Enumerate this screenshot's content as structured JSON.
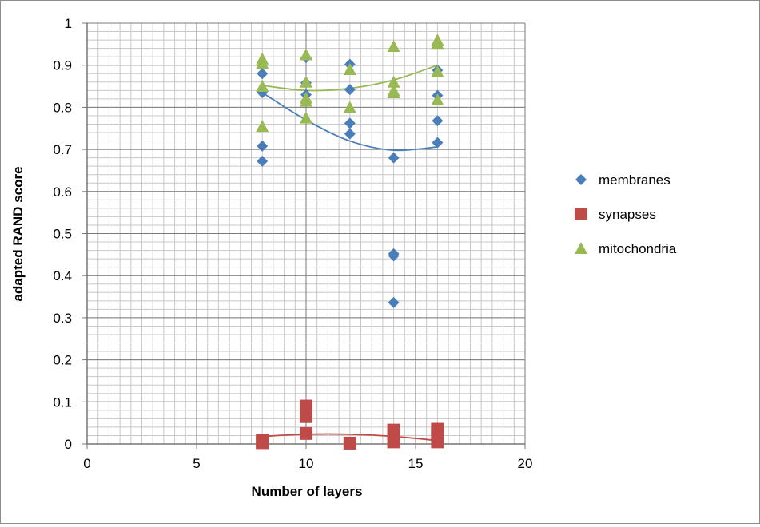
{
  "chart_data": {
    "type": "scatter",
    "title": "",
    "xlabel": "Number of layers",
    "ylabel": "adapted RAND score",
    "xlim": [
      0,
      20
    ],
    "ylim": [
      0,
      1
    ],
    "x_major_ticks": [
      0,
      5,
      10,
      15,
      20
    ],
    "y_major_ticks": [
      0,
      0.1,
      0.2,
      0.3,
      0.4,
      0.5,
      0.6,
      0.7,
      0.8,
      0.9,
      1
    ],
    "x_tick_labels": [
      "0",
      "5",
      "10",
      "15",
      "20"
    ],
    "y_tick_labels": [
      "0",
      "0.1",
      "0.2",
      "0.3",
      "0.4",
      "0.5",
      "0.6",
      "0.7",
      "0.8",
      "0.9",
      "1"
    ],
    "grid": true,
    "legend_position": "right",
    "series": [
      {
        "name": "membranes",
        "marker": "diamond",
        "color": "#4a7ebb",
        "points": [
          [
            8,
            0.835
          ],
          [
            8,
            0.88
          ],
          [
            8,
            0.708
          ],
          [
            8,
            0.672
          ],
          [
            10,
            0.918
          ],
          [
            10,
            0.858
          ],
          [
            10,
            0.83
          ],
          [
            10,
            0.815
          ],
          [
            12,
            0.902
          ],
          [
            12,
            0.842
          ],
          [
            12,
            0.762
          ],
          [
            12,
            0.737
          ],
          [
            14,
            0.68
          ],
          [
            14,
            0.452
          ],
          [
            14,
            0.447
          ],
          [
            14,
            0.336
          ],
          [
            16,
            0.888
          ],
          [
            16,
            0.828
          ],
          [
            16,
            0.768
          ],
          [
            16,
            0.716
          ]
        ],
        "trendline": [
          [
            8,
            0.835
          ],
          [
            10,
            0.77
          ],
          [
            12,
            0.72
          ],
          [
            14,
            0.698
          ],
          [
            16,
            0.706
          ]
        ]
      },
      {
        "name": "synapses",
        "marker": "square",
        "color": "#be4b48",
        "points": [
          [
            8,
            0.008
          ],
          [
            8,
            0.003
          ],
          [
            10,
            0.09
          ],
          [
            10,
            0.08
          ],
          [
            10,
            0.065
          ],
          [
            10,
            0.025
          ],
          [
            12,
            0.002
          ],
          [
            14,
            0.033
          ],
          [
            14,
            0.025
          ],
          [
            14,
            0.012
          ],
          [
            14,
            0.005
          ],
          [
            16,
            0.035
          ],
          [
            16,
            0.025
          ],
          [
            16,
            0.018
          ],
          [
            16,
            0.005
          ]
        ],
        "trendline": [
          [
            8,
            0.018
          ],
          [
            10,
            0.023
          ],
          [
            12,
            0.023
          ],
          [
            14,
            0.018
          ],
          [
            16,
            0.008
          ]
        ]
      },
      {
        "name": "mitochondria",
        "marker": "triangle",
        "color": "#98b954",
        "points": [
          [
            8,
            0.915
          ],
          [
            8,
            0.905
          ],
          [
            8,
            0.85
          ],
          [
            8,
            0.755
          ],
          [
            10,
            0.925
          ],
          [
            10,
            0.86
          ],
          [
            10,
            0.822
          ],
          [
            10,
            0.815
          ],
          [
            10,
            0.775
          ],
          [
            12,
            0.89
          ],
          [
            12,
            0.8
          ],
          [
            14,
            0.945
          ],
          [
            14,
            0.86
          ],
          [
            14,
            0.84
          ],
          [
            14,
            0.835
          ],
          [
            16,
            0.96
          ],
          [
            16,
            0.952
          ],
          [
            16,
            0.885
          ],
          [
            16,
            0.818
          ]
        ],
        "trendline": [
          [
            8,
            0.852
          ],
          [
            10,
            0.84
          ],
          [
            12,
            0.845
          ],
          [
            14,
            0.865
          ],
          [
            16,
            0.9
          ]
        ]
      }
    ]
  }
}
